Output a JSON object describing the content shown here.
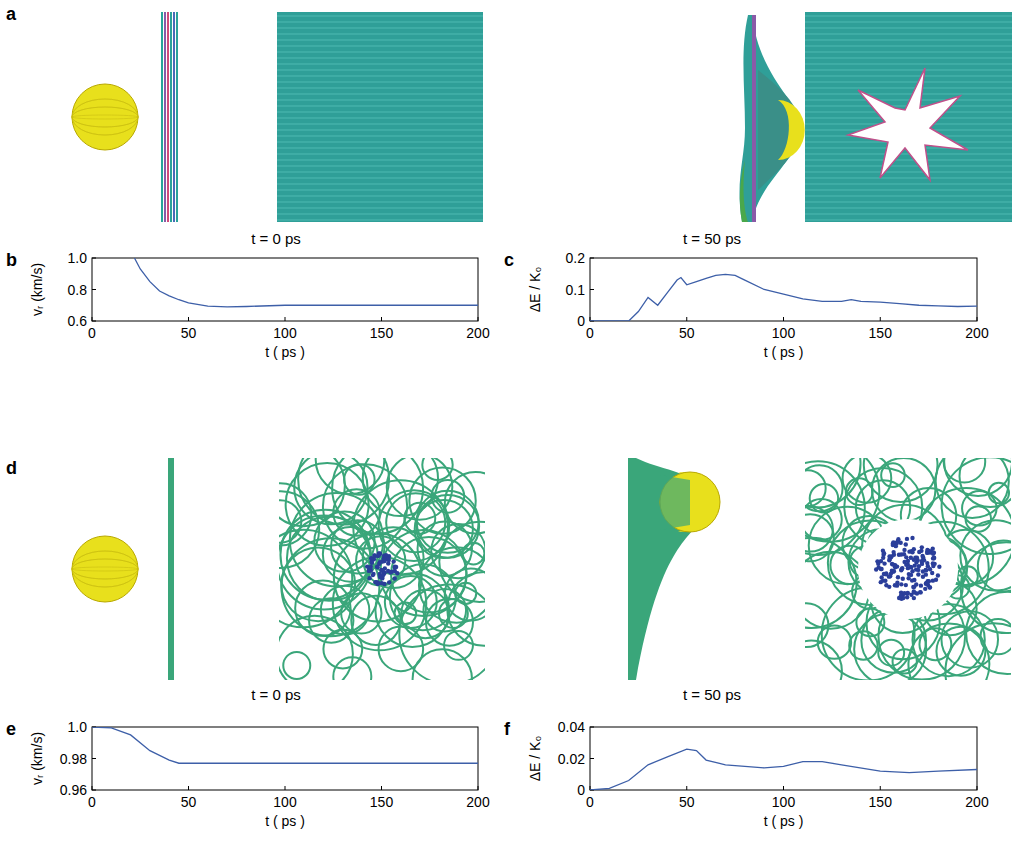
{
  "figure_panels": [
    {
      "panel_label": "a",
      "captions": [
        "t = 0 ps",
        "t = 50 ps"
      ]
    },
    {
      "panel_label": "d",
      "captions": [
        "t = 0 ps",
        "t = 50 ps"
      ]
    }
  ],
  "chart_data": [
    {
      "panel_label": "b",
      "type": "line",
      "color": "#3d5fa8",
      "xlabel": "t ( ps )",
      "ylabel": "vᵣ (km/s)",
      "x": [
        22,
        25,
        30,
        35,
        40,
        45,
        50,
        60,
        70,
        80,
        100,
        150,
        200
      ],
      "values": [
        1.0,
        0.93,
        0.85,
        0.79,
        0.76,
        0.735,
        0.715,
        0.695,
        0.69,
        0.692,
        0.7,
        0.7,
        0.7
      ],
      "xlim": [
        0,
        200
      ],
      "ylim": [
        0.6,
        1
      ],
      "xticks": [
        0,
        50,
        100,
        150,
        200
      ],
      "yticks": [
        0.6,
        0.8,
        {
          "value": 1,
          "label": "1.0"
        }
      ]
    },
    {
      "panel_label": "c",
      "type": "line",
      "color": "#3d5fa8",
      "xlabel": "t ( ps )",
      "ylabel": "ΔE / K₀",
      "x": [
        0,
        20,
        25,
        30,
        35,
        40,
        45,
        47,
        50,
        55,
        60,
        65,
        70,
        75,
        80,
        90,
        100,
        110,
        120,
        130,
        135,
        140,
        150,
        160,
        170,
        180,
        190,
        200
      ],
      "values": [
        0,
        0,
        0.03,
        0.075,
        0.05,
        0.09,
        0.13,
        0.138,
        0.115,
        0.125,
        0.135,
        0.145,
        0.148,
        0.145,
        0.13,
        0.1,
        0.085,
        0.07,
        0.062,
        0.062,
        0.068,
        0.062,
        0.06,
        0.055,
        0.05,
        0.048,
        0.046,
        0.047
      ],
      "xlim": [
        0,
        200
      ],
      "ylim": [
        0,
        0.2
      ],
      "xticks": [
        0,
        50,
        100,
        150,
        200
      ],
      "yticks": [
        0,
        0.1,
        0.2
      ]
    },
    {
      "panel_label": "e",
      "type": "line",
      "color": "#3d5fa8",
      "xlabel": "t ( ps )",
      "ylabel": "vᵣ (km/s)",
      "x": [
        0,
        10,
        20,
        30,
        40,
        45,
        50,
        100,
        150,
        200
      ],
      "values": [
        1.0,
        0.9995,
        0.995,
        0.985,
        0.979,
        0.977,
        0.977,
        0.977,
        0.977,
        0.977
      ],
      "xlim": [
        0,
        200
      ],
      "ylim": [
        0.96,
        1
      ],
      "xticks": [
        0,
        50,
        100,
        150,
        200
      ],
      "yticks": [
        0.96,
        0.98,
        {
          "value": 1,
          "label": "1.0"
        }
      ]
    },
    {
      "panel_label": "f",
      "type": "line",
      "color": "#3d5fa8",
      "xlabel": "t ( ps )",
      "ylabel": "ΔE / K₀",
      "x": [
        0,
        10,
        20,
        30,
        40,
        50,
        55,
        60,
        70,
        80,
        90,
        100,
        110,
        120,
        130,
        150,
        165,
        180,
        200
      ],
      "values": [
        0,
        0.001,
        0.006,
        0.016,
        0.021,
        0.026,
        0.025,
        0.019,
        0.016,
        0.015,
        0.014,
        0.015,
        0.018,
        0.018,
        0.016,
        0.012,
        0.011,
        0.012,
        0.013
      ],
      "xlim": [
        0,
        200
      ],
      "ylim": [
        0,
        0.04
      ],
      "xticks": [
        0,
        50,
        100,
        150,
        200
      ],
      "yticks": [
        0,
        0.02,
        0.04
      ]
    }
  ]
}
